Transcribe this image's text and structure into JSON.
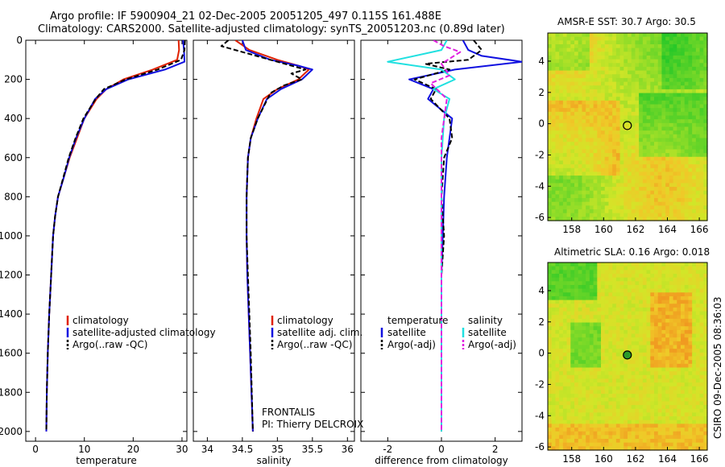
{
  "header": {
    "line1": "Argo profile: IF 5900904_21 02-Dec-2005 20051205_497 0.115S 161.488E",
    "line2": "Climatology: CARS2000. Satellite-adjusted climatology: synTS_20051203.nc (0.89d later)"
  },
  "credit": "CSIRO 09-Dec-2005 08:36:03",
  "colors": {
    "clim": "#e02000",
    "sat": "#1010e0",
    "argo": "#000000",
    "cyan": "#20e0e0",
    "magenta": "#e020e0"
  },
  "chart_data": [
    {
      "id": "temperature",
      "type": "line",
      "xlabel": "temperature",
      "xlim": [
        -2,
        31
      ],
      "ylim": [
        0,
        2050
      ],
      "xticks": [
        0,
        10,
        20,
        30
      ],
      "yticks": [
        0,
        200,
        400,
        600,
        800,
        1000,
        1200,
        1400,
        1600,
        1800,
        2000
      ],
      "legend": [
        "climatology",
        "satellite-adjusted climatology",
        "Argo(..raw -QC)"
      ],
      "series": [
        {
          "name": "climatology",
          "color": "clim",
          "dash": false,
          "x": [
            29.3,
            29.4,
            29.0,
            24.0,
            18.0,
            14.5,
            12.5,
            10.0,
            8.5,
            7.0,
            5.8,
            4.6,
            4.0,
            3.6,
            3.2,
            2.8,
            2.5,
            2.3,
            2.2
          ],
          "y": [
            0,
            50,
            100,
            150,
            200,
            250,
            300,
            400,
            500,
            600,
            700,
            800,
            900,
            1000,
            1200,
            1400,
            1600,
            1800,
            2000
          ]
        },
        {
          "name": "satellite",
          "color": "sat",
          "dash": false,
          "x": [
            30.2,
            30.4,
            30.5,
            26.5,
            19.0,
            14.5,
            12.2,
            10.0,
            8.3,
            6.9,
            5.8,
            4.6,
            4.0,
            3.6,
            3.2,
            2.8,
            2.5,
            2.3,
            2.2
          ],
          "y": [
            0,
            50,
            110,
            150,
            200,
            250,
            300,
            400,
            500,
            600,
            700,
            800,
            900,
            1000,
            1200,
            1400,
            1600,
            1800,
            2000
          ]
        },
        {
          "name": "argo",
          "color": "argo",
          "dash": true,
          "x": [
            30.6,
            30.5,
            29.8,
            25.0,
            18.5,
            14.0,
            12.3,
            9.8,
            8.2,
            6.8,
            5.7,
            4.6,
            4.0,
            3.6,
            3.2,
            2.8,
            2.5,
            2.3,
            2.2
          ],
          "y": [
            0,
            50,
            100,
            150,
            200,
            250,
            300,
            400,
            500,
            600,
            700,
            800,
            900,
            1000,
            1200,
            1400,
            1600,
            1800,
            2000
          ]
        }
      ]
    },
    {
      "id": "salinity",
      "type": "line",
      "xlabel": "salinity",
      "xlim": [
        33.8,
        36.1
      ],
      "ylim": [
        0,
        2050
      ],
      "xticks": [
        34,
        34.5,
        35,
        35.5,
        36
      ],
      "xticklabels": [
        "34",
        "34.5",
        "35",
        "35.5",
        "36"
      ],
      "legend": [
        "climatology",
        "satellite adj. clim.",
        "Argo(..raw -QC)"
      ],
      "annotation": [
        "FRONTALIS",
        "PI: Thierry DELCROIX"
      ],
      "series": [
        {
          "name": "climatology",
          "color": "clim",
          "dash": false,
          "x": [
            34.4,
            34.6,
            35.0,
            35.3,
            35.45,
            35.3,
            35.0,
            34.8,
            34.7,
            34.62,
            34.58,
            34.56,
            34.56,
            34.57,
            34.6,
            34.63,
            34.65
          ],
          "y": [
            0,
            50,
            100,
            130,
            150,
            200,
            250,
            300,
            400,
            500,
            600,
            800,
            1000,
            1200,
            1500,
            1800,
            2000
          ]
        },
        {
          "name": "satellite",
          "color": "sat",
          "dash": false,
          "x": [
            34.5,
            34.55,
            34.9,
            35.3,
            35.5,
            35.35,
            35.05,
            34.85,
            34.72,
            34.62,
            34.58,
            34.56,
            34.56,
            34.57,
            34.6,
            34.63,
            34.65
          ],
          "y": [
            0,
            50,
            100,
            130,
            150,
            200,
            250,
            300,
            400,
            500,
            600,
            800,
            1000,
            1200,
            1500,
            1800,
            2000
          ]
        },
        {
          "name": "argo",
          "color": "argo",
          "dash": true,
          "x": [
            34.3,
            34.2,
            34.6,
            35.0,
            35.4,
            35.2,
            35.35,
            35.1,
            34.9,
            34.72,
            34.62,
            34.58,
            34.56,
            34.56,
            34.58,
            34.62,
            34.65
          ],
          "y": [
            0,
            30,
            70,
            110,
            150,
            170,
            200,
            230,
            270,
            400,
            500,
            600,
            800,
            1000,
            1200,
            1600,
            2000
          ]
        }
      ]
    },
    {
      "id": "difference",
      "type": "line",
      "xlabel": "difference from climatology",
      "xlim": [
        -3,
        3
      ],
      "ylim": [
        0,
        2050
      ],
      "xticks": [
        -2,
        0,
        2
      ],
      "legend_headers": [
        "temperature",
        "salinity"
      ],
      "legend": [
        "satellite",
        "Argo(-adj)",
        "satellite",
        "Argo(-adj)"
      ],
      "series": [
        {
          "name": "T satellite",
          "color": "sat",
          "dash": false,
          "x": [
            0.8,
            1.0,
            1.5,
            3.0,
            0.5,
            -1.2,
            -0.3,
            -0.5,
            0.4,
            0.3,
            0.2,
            0.1,
            0.05,
            0.0,
            0.0,
            0.0
          ],
          "y": [
            0,
            50,
            80,
            110,
            150,
            200,
            250,
            300,
            400,
            500,
            600,
            800,
            1000,
            1200,
            1600,
            2000
          ]
        },
        {
          "name": "T argo",
          "color": "argo",
          "dash": true,
          "x": [
            1.2,
            1.5,
            1.0,
            -0.6,
            0.3,
            -1.0,
            -0.2,
            -0.4,
            0.3,
            0.4,
            0.1,
            0.0,
            0.1,
            0.0,
            0.0,
            0.0
          ],
          "y": [
            0,
            50,
            100,
            120,
            150,
            200,
            250,
            300,
            400,
            500,
            600,
            800,
            1000,
            1200,
            1600,
            2000
          ]
        },
        {
          "name": "S satellite",
          "color": "cyan",
          "dash": false,
          "x": [
            0.2,
            0.0,
            -2.0,
            0.0,
            0.5,
            -0.3,
            0.3,
            0.1,
            0.0,
            0.0,
            0.0,
            0.0
          ],
          "y": [
            0,
            50,
            110,
            150,
            200,
            250,
            300,
            400,
            600,
            1000,
            1500,
            2000
          ]
        },
        {
          "name": "S argo",
          "color": "magenta",
          "dash": true,
          "x": [
            -0.3,
            0.1,
            0.7,
            0.0,
            0.3,
            -0.4,
            0.2,
            0.0,
            0.0,
            0.0
          ],
          "y": [
            0,
            30,
            60,
            120,
            180,
            220,
            300,
            500,
            1000,
            2000
          ]
        }
      ]
    },
    {
      "id": "sst-map",
      "type": "heatmap",
      "title": "AMSR-E SST: 30.7  Argo: 30.5",
      "xticks": [
        158,
        160,
        162,
        164,
        166
      ],
      "yticks": [
        4,
        2,
        0,
        -2,
        -4,
        -6
      ],
      "xlim": [
        156.5,
        166.5
      ],
      "ylim": [
        -6.2,
        5.8
      ],
      "marker": {
        "lon": 161.488,
        "lat": -0.115
      }
    },
    {
      "id": "sla-map",
      "type": "heatmap",
      "title": "Altimetric SLA: 0.16  Argo: 0.018",
      "xticks": [
        158,
        160,
        162,
        164,
        166
      ],
      "yticks": [
        4,
        2,
        0,
        -2,
        -4,
        -6
      ],
      "xlim": [
        156.5,
        166.5
      ],
      "ylim": [
        -6.2,
        5.8
      ],
      "marker": {
        "lon": 161.488,
        "lat": -0.115
      }
    }
  ]
}
